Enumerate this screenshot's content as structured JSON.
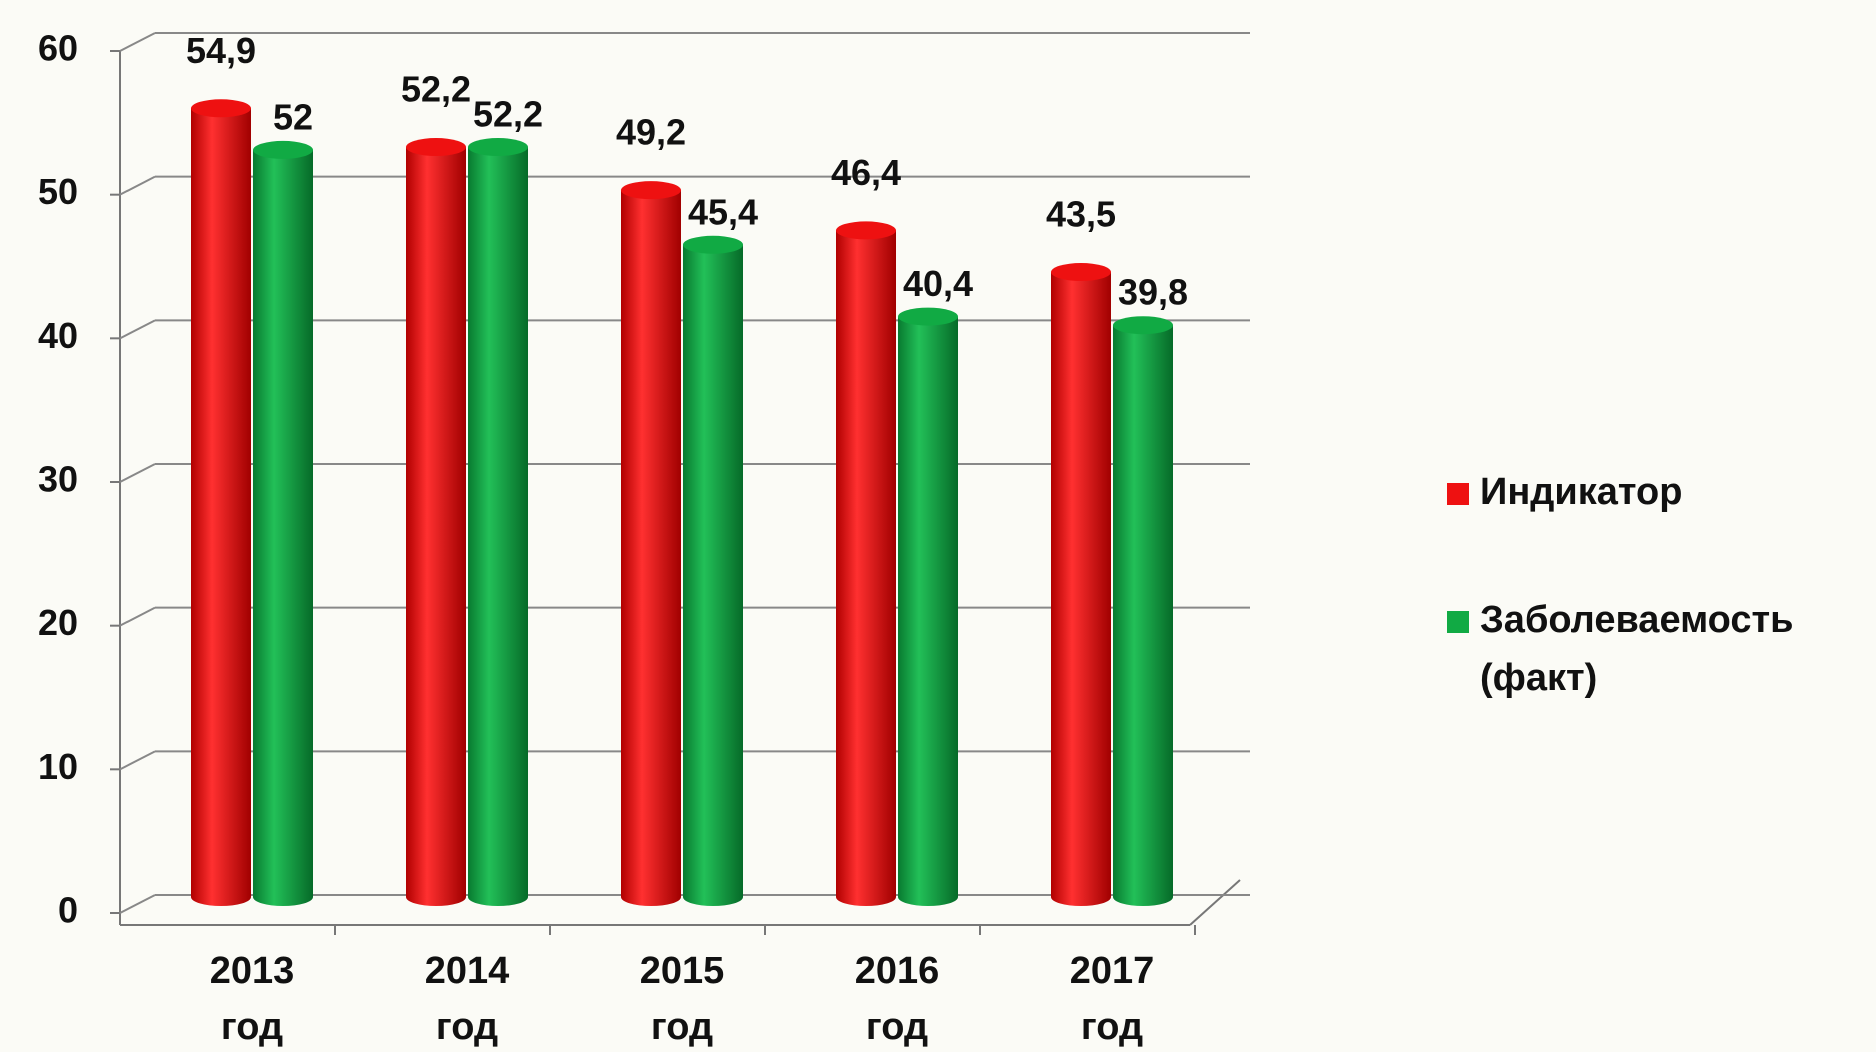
{
  "chart_data": {
    "type": "bar",
    "categories": [
      "2013 год",
      "2014 год",
      "2015 год",
      "2016 год",
      "2017 год"
    ],
    "series": [
      {
        "name": "Индикатор",
        "color": "#ee1111",
        "values": [
          54.9,
          52.2,
          49.2,
          46.4,
          43.5
        ],
        "value_labels": [
          "54,9",
          "52,2",
          "49,2",
          "46,4",
          "43,5"
        ]
      },
      {
        "name": "Заболеваемость (факт)",
        "color": "#11aa44",
        "values": [
          52,
          52.2,
          45.4,
          40.4,
          39.8
        ],
        "value_labels": [
          "52",
          "52,2",
          "45,4",
          "40,4",
          "39,8"
        ]
      }
    ],
    "ylim": [
      0,
      60
    ],
    "yticks": [
      0,
      10,
      20,
      30,
      40,
      50,
      60
    ],
    "grid": true,
    "legend": "right"
  }
}
